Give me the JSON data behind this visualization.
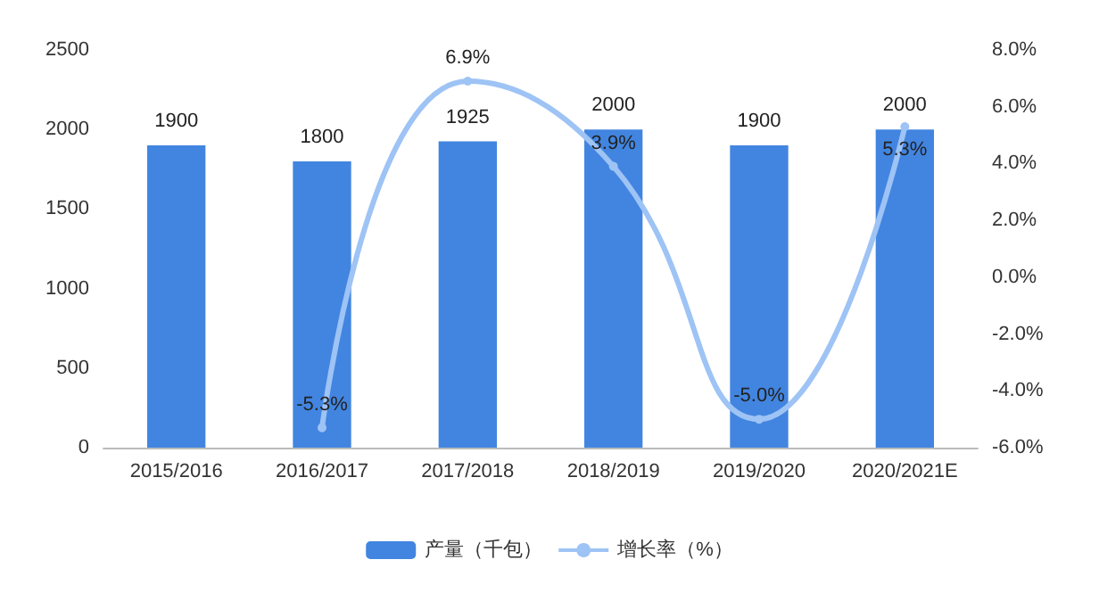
{
  "chart_data": {
    "type": "bar",
    "categories": [
      "2015/2016",
      "2016/2017",
      "2017/2018",
      "2018/2019",
      "2019/2020",
      "2020/2021E"
    ],
    "series": [
      {
        "name": "产量（千包）",
        "type": "bar",
        "color": "#4285e0",
        "values": [
          1900,
          1800,
          1925,
          2000,
          1900,
          2000
        ]
      },
      {
        "name": "增长率（%）",
        "type": "line",
        "axis": "y2",
        "color": "#9ec3f5",
        "marker": "circle",
        "values": [
          null,
          -5.3,
          6.9,
          3.9,
          -5.0,
          5.3
        ],
        "value_labels": [
          null,
          "-5.3%",
          "6.9%",
          "3.9%",
          "-5.0%",
          "5.3%"
        ]
      }
    ],
    "ylim": [
      0,
      2500
    ],
    "yticks": [
      0,
      500,
      1000,
      1500,
      2000,
      2500
    ],
    "y2lim": [
      -6,
      8
    ],
    "y2ticks": [
      {
        "value": -6,
        "label": "-6.0%"
      },
      {
        "value": -4,
        "label": "-4.0%"
      },
      {
        "value": -2,
        "label": "-2.0%"
      },
      {
        "value": 0,
        "label": "0.0%"
      },
      {
        "value": 2,
        "label": "2.0%"
      },
      {
        "value": 4,
        "label": "4.0%"
      },
      {
        "value": 6,
        "label": "6.0%"
      },
      {
        "value": 8,
        "label": "8.0%"
      }
    ],
    "data_labels": true,
    "legend": "bottom",
    "grid": false
  }
}
